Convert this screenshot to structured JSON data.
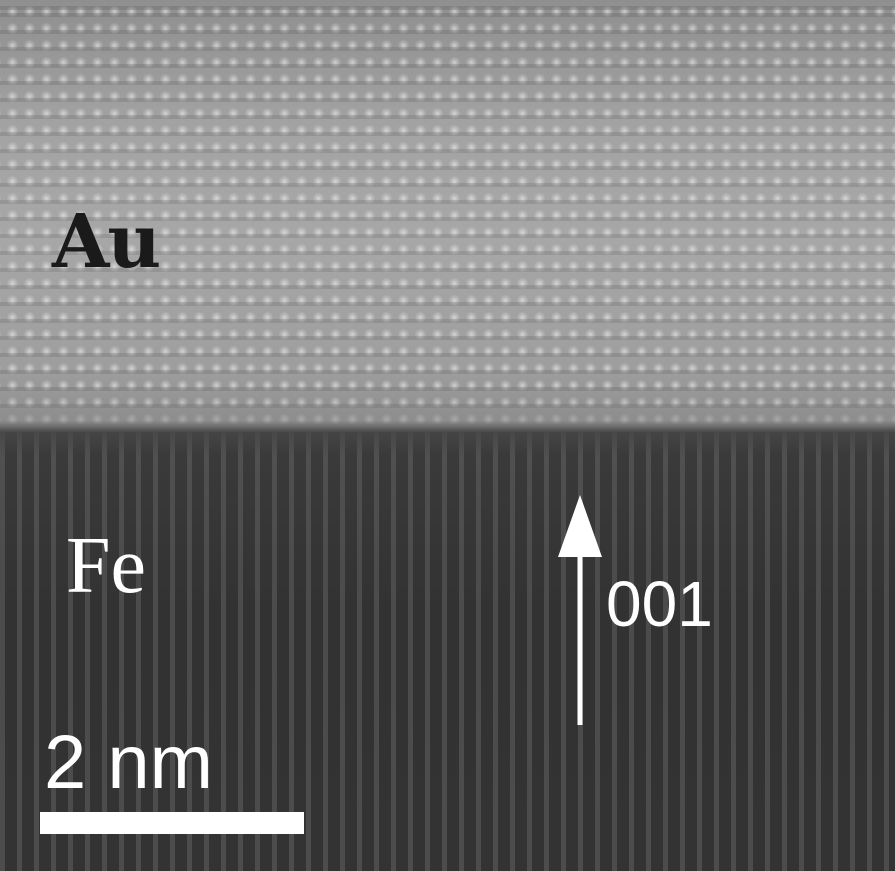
{
  "labels": {
    "top_layer": "Au",
    "bottom_layer": "Fe",
    "direction": "001",
    "scale": "2 nm"
  },
  "colors": {
    "au_layer": "#a0a0a0",
    "fe_layer": "#3b3b3b",
    "annotation_light": "#ffffff",
    "annotation_dark": "#1a1a1a"
  }
}
